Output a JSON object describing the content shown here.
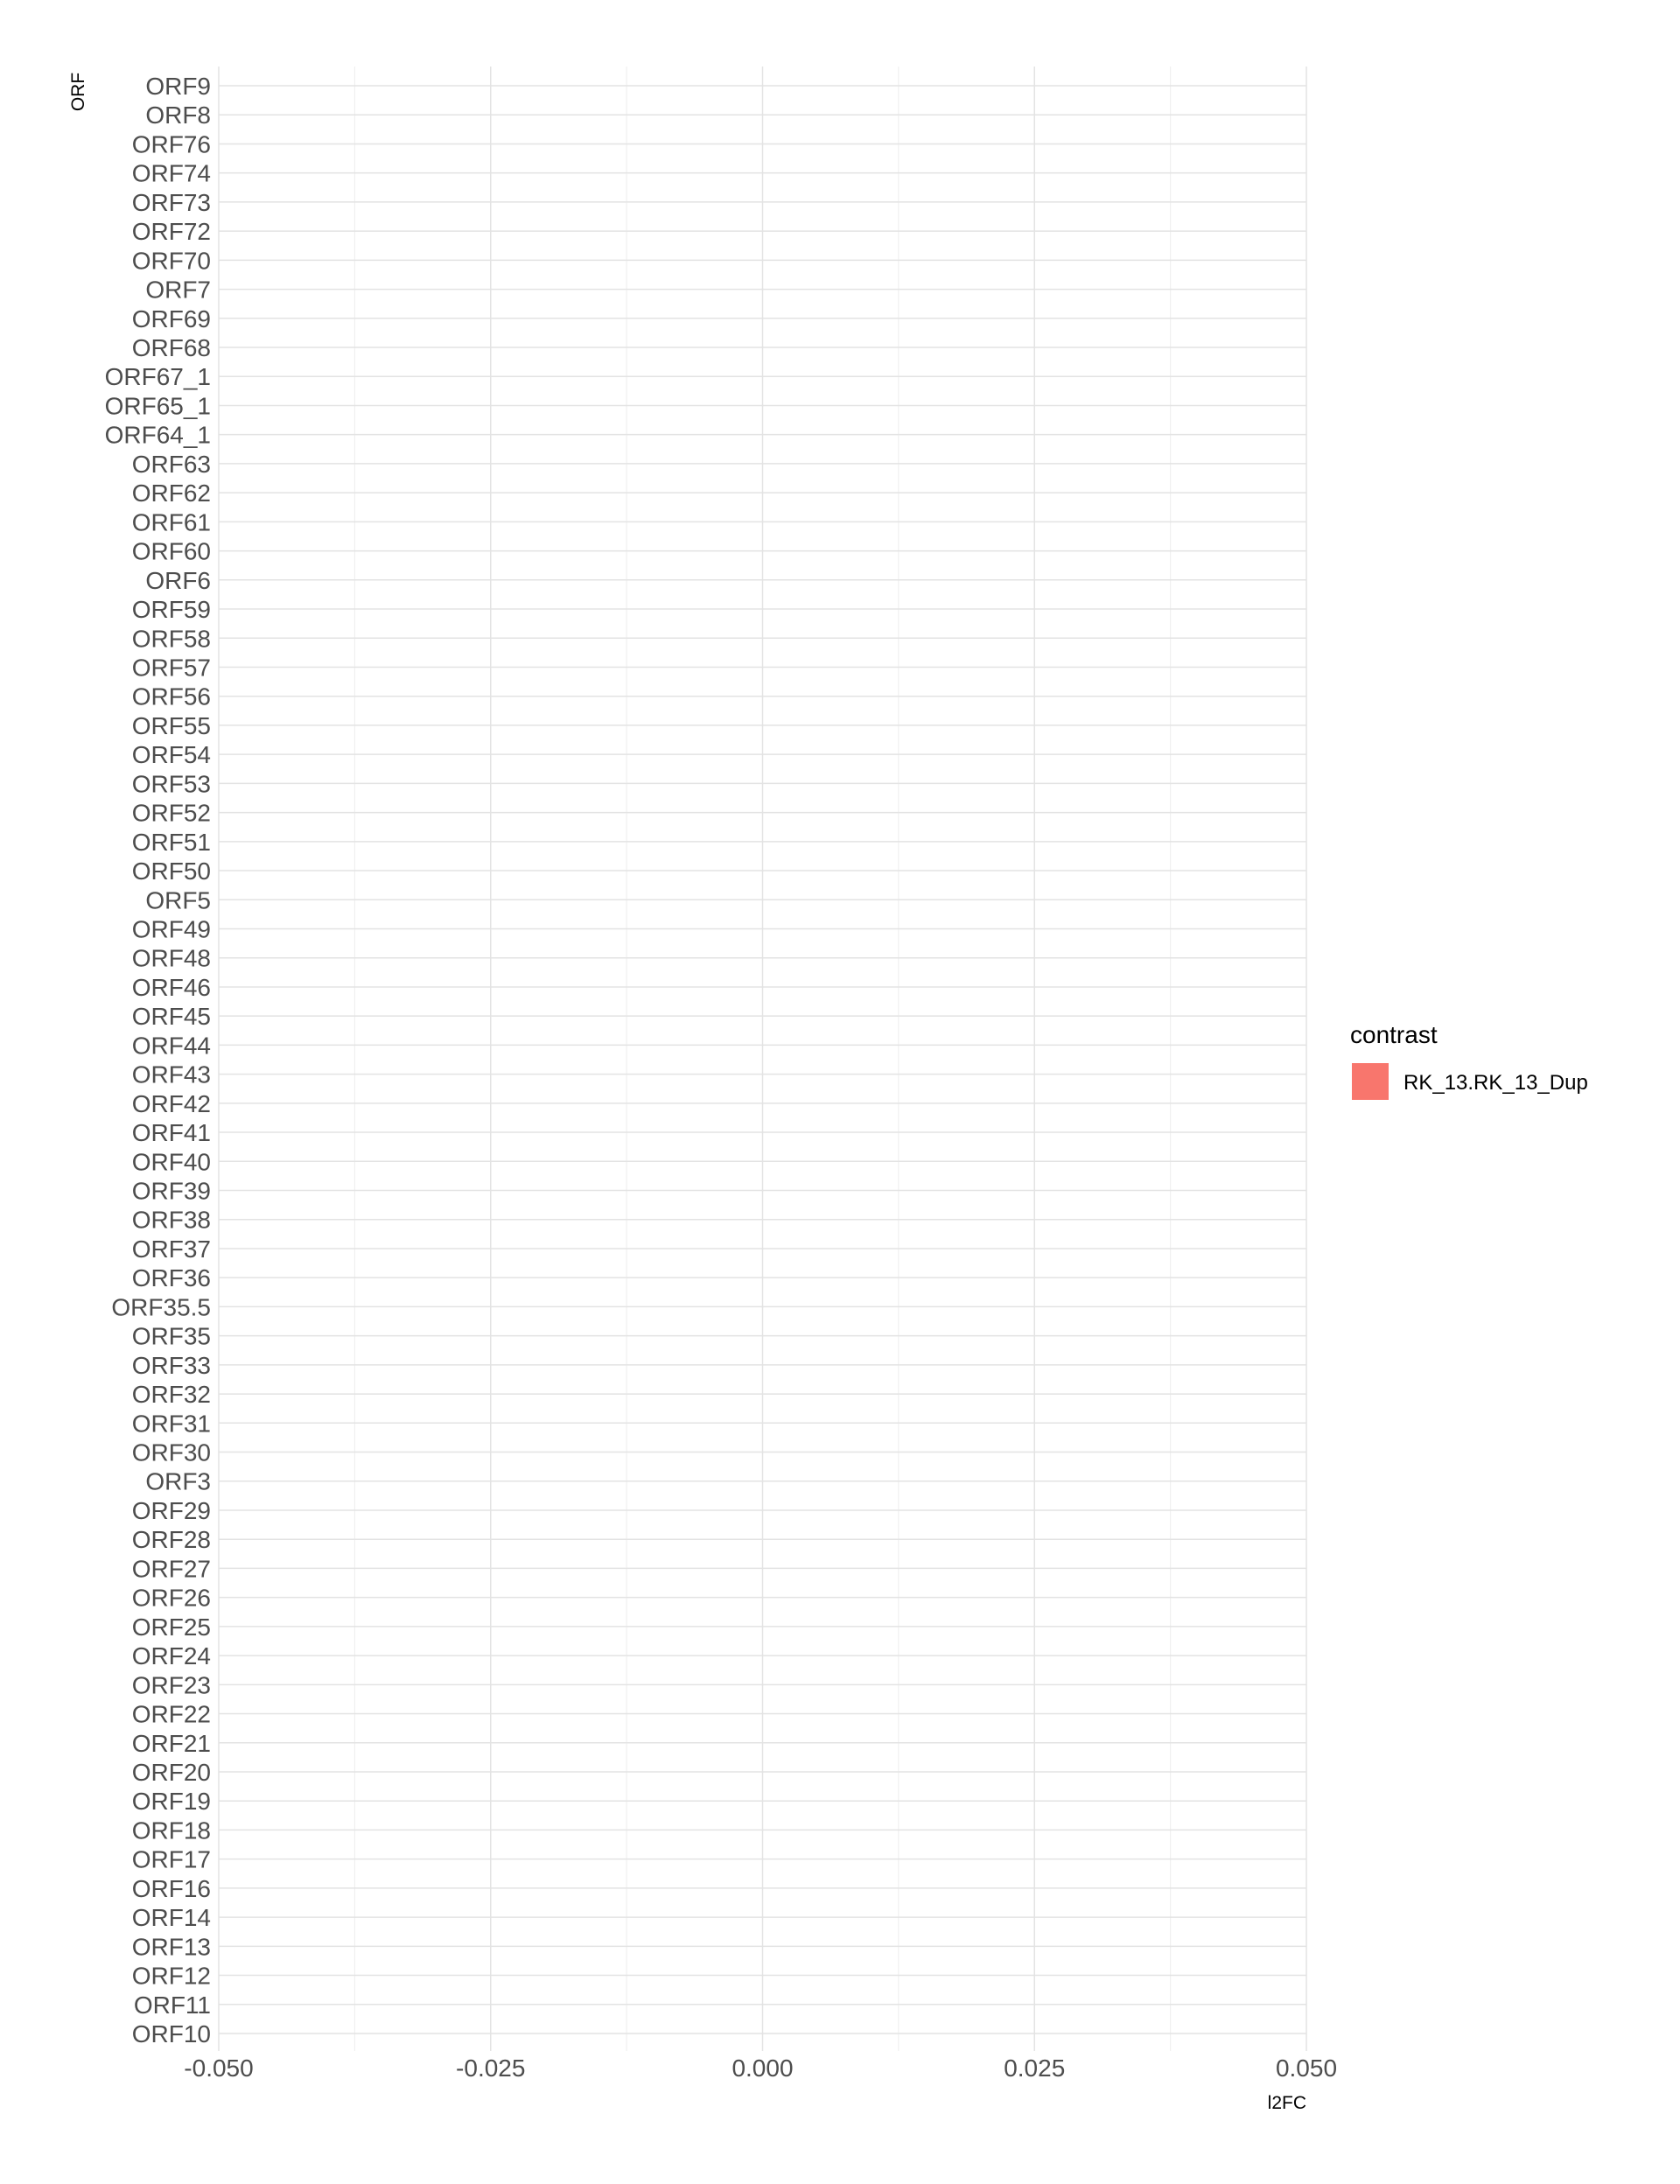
{
  "chart_data": {
    "type": "bar",
    "orientation": "horizontal",
    "xlabel": "l2FC",
    "ylabel": "ORF",
    "xlim": [
      -0.05,
      0.05
    ],
    "x_ticks": [
      "-0.050",
      "-0.025",
      "0.000",
      "0.025",
      "0.050"
    ],
    "x_tick_values": [
      -0.05,
      -0.025,
      0.0,
      0.025,
      0.05
    ],
    "grid": true,
    "legend": {
      "title": "contrast",
      "placement": "right",
      "entries": [
        {
          "label": "RK_13.RK_13_Dup",
          "color": "#F8766D"
        }
      ]
    },
    "categories": [
      "ORF9",
      "ORF8",
      "ORF76",
      "ORF74",
      "ORF73",
      "ORF72",
      "ORF70",
      "ORF7",
      "ORF69",
      "ORF68",
      "ORF67_1",
      "ORF65_1",
      "ORF64_1",
      "ORF63",
      "ORF62",
      "ORF61",
      "ORF60",
      "ORF6",
      "ORF59",
      "ORF58",
      "ORF57",
      "ORF56",
      "ORF55",
      "ORF54",
      "ORF53",
      "ORF52",
      "ORF51",
      "ORF50",
      "ORF5",
      "ORF49",
      "ORF48",
      "ORF46",
      "ORF45",
      "ORF44",
      "ORF43",
      "ORF42",
      "ORF41",
      "ORF40",
      "ORF39",
      "ORF38",
      "ORF37",
      "ORF36",
      "ORF35.5",
      "ORF35",
      "ORF33",
      "ORF32",
      "ORF31",
      "ORF30",
      "ORF3",
      "ORF29",
      "ORF28",
      "ORF27",
      "ORF26",
      "ORF25",
      "ORF24",
      "ORF23",
      "ORF22",
      "ORF21",
      "ORF20",
      "ORF19",
      "ORF18",
      "ORF17",
      "ORF16",
      "ORF14",
      "ORF13",
      "ORF12",
      "ORF11",
      "ORF10"
    ],
    "series": [
      {
        "name": "RK_13.RK_13_Dup",
        "color": "#F8766D",
        "values": [
          0,
          0,
          0,
          0,
          0,
          0,
          0,
          0,
          0,
          0,
          0,
          0,
          0,
          0,
          0,
          0,
          0,
          0,
          0,
          0,
          0,
          0,
          0,
          0,
          0,
          0,
          0,
          0,
          0,
          0,
          0,
          0,
          0,
          0,
          0,
          0,
          0,
          0,
          0,
          0,
          0,
          0,
          0,
          0,
          0,
          0,
          0,
          0,
          0,
          0,
          0,
          0,
          0,
          0,
          0,
          0,
          0,
          0,
          0,
          0,
          0,
          0,
          0,
          0,
          0,
          0,
          0,
          0
        ]
      }
    ]
  }
}
